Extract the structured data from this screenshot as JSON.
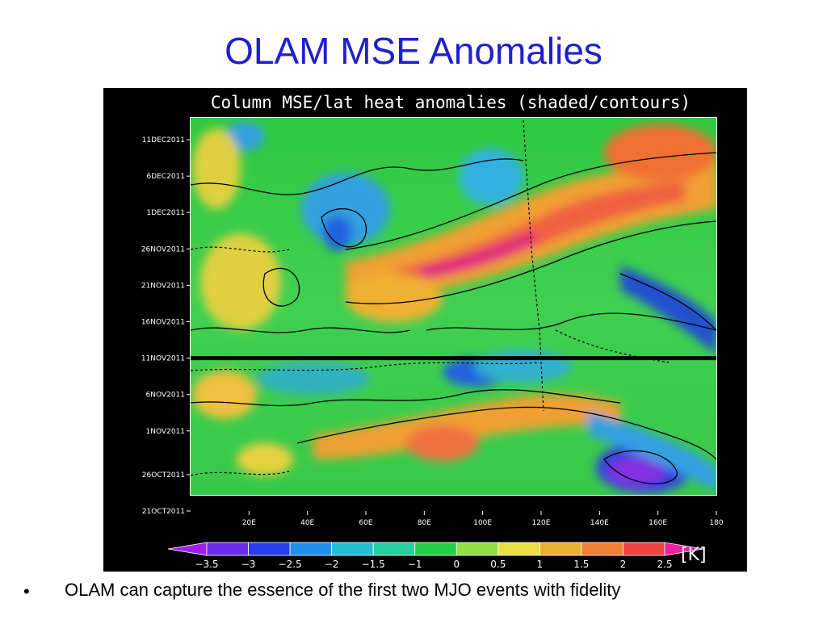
{
  "slide": {
    "title": "OLAM MSE Anomalies",
    "bullet": "OLAM can capture the essence of the first two MJO events with fidelity"
  },
  "chart_data": {
    "type": "heatmap",
    "title": "Column MSE/lat heat anomalies (shaded/contours)",
    "x_tick_labels": [
      "20E",
      "40E",
      "60E",
      "80E",
      "100E",
      "120E",
      "140E",
      "160E",
      "180"
    ],
    "x_range": [
      0,
      180
    ],
    "y_tick_labels": [
      "11DEC2011",
      "6DEC2011",
      "1DEC2011",
      "26NOV2011",
      "21NOV2011",
      "16NOV2011",
      "11NOV2011",
      "6NOV2011",
      "1NOV2011",
      "26OCT2011",
      "21OCT2011"
    ],
    "y_range": [
      "2011-10-21",
      "2011-12-14"
    ],
    "reference_line_date": "2011-11-11",
    "colorbar": {
      "unit": "[K]",
      "labels": [
        "-3.5",
        "-3",
        "-2.5",
        "-2",
        "-1.5",
        "-1",
        "0",
        "0.5",
        "1",
        "1.5",
        "2",
        "2.5"
      ],
      "colors": [
        "#a020f0",
        "#6a2cf0",
        "#2a3cf0",
        "#1e90f0",
        "#20c0d0",
        "#20d0a0",
        "#20d040",
        "#90e040",
        "#e8e040",
        "#e8b030",
        "#f08030",
        "#f04040",
        "#f020a0"
      ]
    }
  }
}
